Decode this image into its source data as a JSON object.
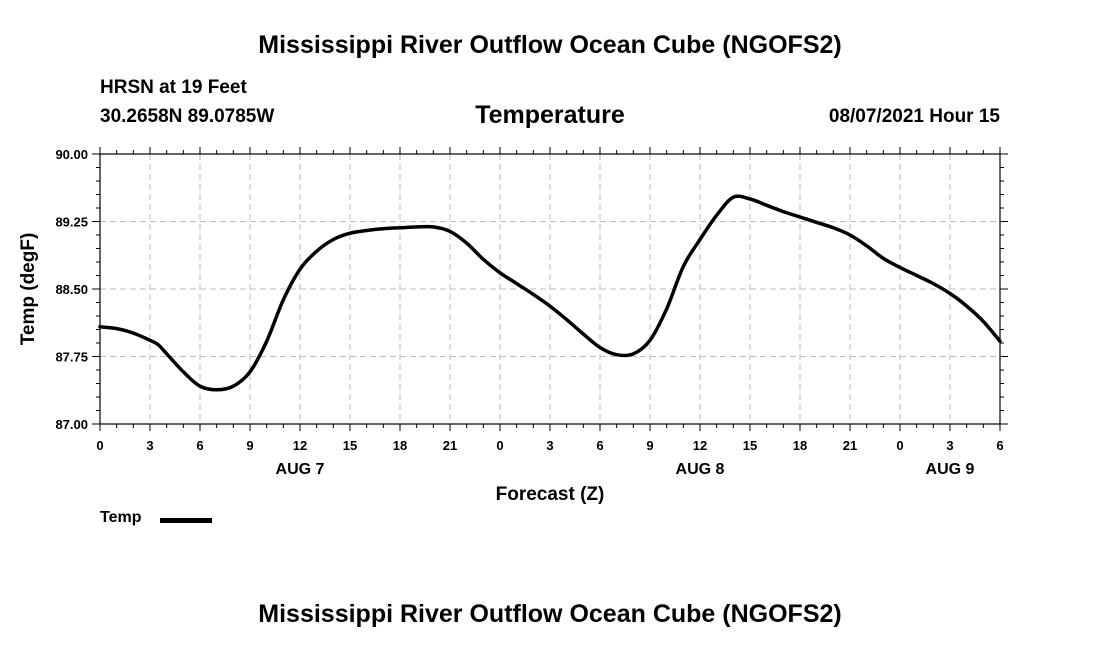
{
  "title": "Mississippi River Outflow Ocean Cube (NGOFS2)",
  "footer_title": "Mississippi River Outflow Ocean Cube (NGOFS2)",
  "station_label": "HRSN at 19 Feet",
  "coordinates": "30.2658N  89.0785W",
  "datetime": "08/07/2021 Hour 15",
  "chart_data": {
    "type": "line",
    "title": "Temperature",
    "xlabel": "Forecast (Z)",
    "ylabel": "Temp (degF)",
    "xlim": [
      0,
      54
    ],
    "ylim": [
      87.0,
      90.0
    ],
    "grid": true,
    "y_ticks": [
      "87.00",
      "87.75",
      "88.50",
      "89.25",
      "90.00"
    ],
    "x_ticks": [
      "0",
      "3",
      "6",
      "9",
      "12",
      "15",
      "18",
      "21",
      "0",
      "3",
      "6",
      "9",
      "12",
      "15",
      "18",
      "21",
      "0",
      "3",
      "6"
    ],
    "day_labels": [
      {
        "label": "AUG 7",
        "at_hour": 12
      },
      {
        "label": "AUG 8",
        "at_hour": 36
      },
      {
        "label": "AUG 9",
        "at_hour": 51
      }
    ],
    "legend": [
      {
        "name": "Temp",
        "position": "bottom-left"
      }
    ],
    "series": [
      {
        "name": "Temp",
        "x": [
          0,
          1,
          2,
          3,
          3.5,
          4,
          5,
          6,
          7,
          8,
          9,
          10,
          11,
          12,
          13,
          14,
          15,
          16,
          17,
          18,
          19,
          20,
          21,
          22,
          23,
          24,
          25,
          26,
          27,
          28,
          29,
          30,
          31,
          32,
          33,
          34,
          35,
          36,
          37,
          38,
          39,
          40,
          41,
          42,
          43,
          44,
          45,
          46,
          47,
          48,
          49,
          50,
          51,
          52,
          53,
          54
        ],
        "y": [
          88.08,
          88.06,
          88.01,
          87.93,
          87.88,
          87.78,
          87.58,
          87.42,
          87.38,
          87.42,
          87.58,
          87.92,
          88.38,
          88.72,
          88.92,
          89.05,
          89.12,
          89.15,
          89.17,
          89.18,
          89.19,
          89.19,
          89.14,
          89.01,
          88.83,
          88.68,
          88.56,
          88.44,
          88.31,
          88.16,
          88.0,
          87.85,
          87.77,
          87.78,
          87.93,
          88.28,
          88.75,
          89.05,
          89.32,
          89.52,
          89.5,
          89.43,
          89.36,
          89.3,
          89.24,
          89.18,
          89.1,
          88.98,
          88.84,
          88.74,
          88.65,
          88.56,
          88.45,
          88.31,
          88.14,
          87.92
        ]
      }
    ]
  }
}
